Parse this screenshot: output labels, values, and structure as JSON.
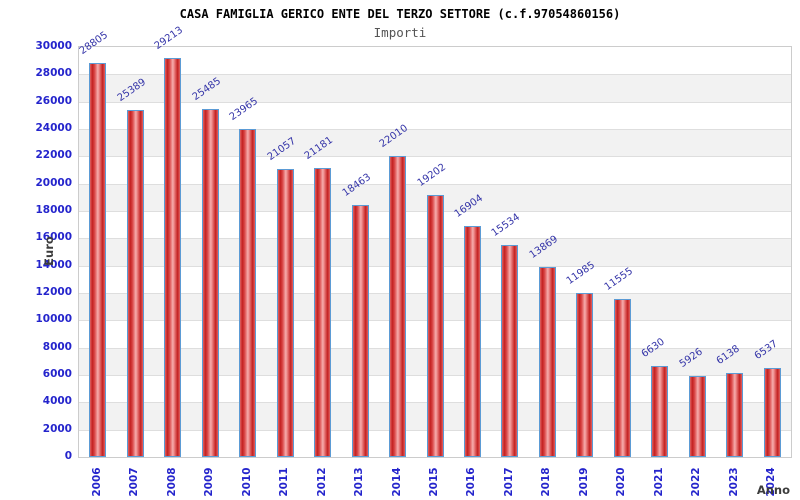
{
  "chart_data": {
    "type": "bar",
    "title": "CASA FAMIGLIA GERICO ENTE DEL TERZO SETTORE (c.f.97054860156)",
    "subtitle": "Importi",
    "xlabel": "Anno",
    "ylabel": "Euro",
    "categories": [
      "2006",
      "2007",
      "2008",
      "2009",
      "2010",
      "2011",
      "2012",
      "2013",
      "2014",
      "2015",
      "2016",
      "2017",
      "2018",
      "2019",
      "2020",
      "2021",
      "2022",
      "2023",
      "2024"
    ],
    "values": [
      28805,
      25389,
      29213,
      25485,
      23965,
      21057,
      21181,
      18463,
      22010,
      19202,
      16904,
      15534,
      13869,
      11985,
      11555,
      6630,
      5926,
      6138,
      6537
    ],
    "ylim": [
      0,
      30000
    ],
    "ytick_step": 2000,
    "grid": "horizontal",
    "band_style": "alternating white and light gray rows",
    "legend": "none",
    "value_labels": "above bars, rotated",
    "colors": {
      "bar_fill": "#c32020",
      "bar_fill_highlight": "#f5adad",
      "bar_border": "#5b9bd5",
      "tick_label": "#2424cc",
      "value_label": "#3434a8",
      "axis_title": "#3c3c3c",
      "band": "#f2f2f2",
      "gridline": "#dedede",
      "title": "#000000",
      "subtitle": "#555555"
    }
  }
}
